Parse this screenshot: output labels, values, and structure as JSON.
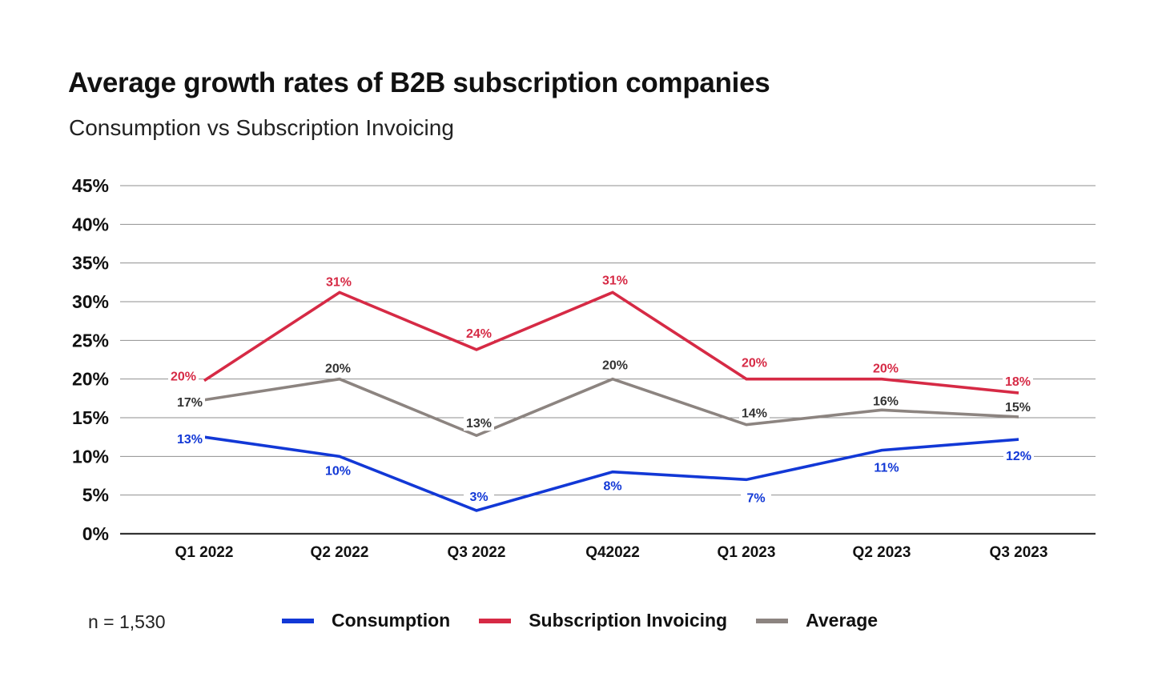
{
  "title": "Average growth rates of B2B subscription companies",
  "subtitle": "Consumption vs Subscription Invoicing",
  "footer_note": "n = 1,530",
  "chart_data": {
    "type": "line",
    "title": "Average growth rates of B2B subscription companies",
    "subtitle": "Consumption vs Subscription Invoicing",
    "xlabel": "",
    "ylabel": "",
    "categories": [
      "Q1 2022",
      "Q2 2022",
      "Q3 2022",
      "Q42022",
      "Q1 2023",
      "Q2 2023",
      "Q3 2023"
    ],
    "ylim": [
      0,
      45
    ],
    "yticks": [
      0,
      5,
      10,
      15,
      20,
      25,
      30,
      35,
      40,
      45
    ],
    "ytick_labels": [
      "0%",
      "5%",
      "10%",
      "15%",
      "20%",
      "25%",
      "30%",
      "35%",
      "40%",
      "45%"
    ],
    "grid": true,
    "legend_position": "bottom",
    "series": [
      {
        "name": "Consumption",
        "color": "#1238d6",
        "values": [
          12.5,
          10,
          3,
          8,
          7,
          10.8,
          12.2
        ],
        "labels": [
          "13%",
          "10%",
          "3%",
          "8%",
          "7%",
          "11%",
          "12%"
        ]
      },
      {
        "name": "Subscription Invoicing",
        "color": "#d62a45",
        "values": [
          19.8,
          31.2,
          23.8,
          31.2,
          20,
          20,
          18.2
        ],
        "labels": [
          "20%",
          "31%",
          "24%",
          "31%",
          "20%",
          "20%",
          "18%"
        ]
      },
      {
        "name": "Average",
        "color": "#8c8480",
        "values": [
          17.3,
          20,
          12.7,
          20,
          14.1,
          16,
          15.1
        ],
        "labels": [
          "17%",
          "20%",
          "13%",
          "20%",
          "14%",
          "16%",
          "15%"
        ]
      }
    ]
  }
}
